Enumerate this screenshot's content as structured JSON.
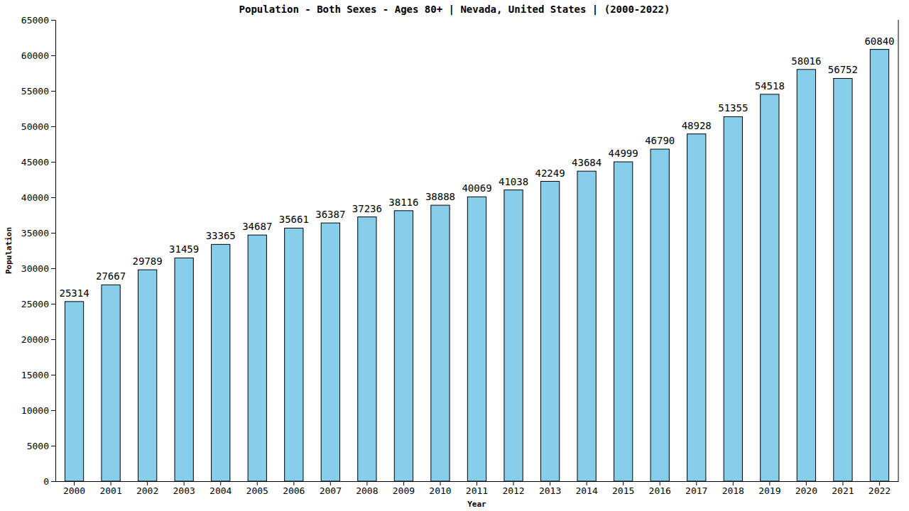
{
  "chart_data": {
    "type": "bar",
    "title": "Population - Both Sexes - Ages 80+ | Nevada, United States |  (2000-2022)",
    "x_label": "Year",
    "y_label": "Population",
    "categories": [
      "2000",
      "2001",
      "2002",
      "2003",
      "2004",
      "2005",
      "2006",
      "2007",
      "2008",
      "2009",
      "2010",
      "2011",
      "2012",
      "2013",
      "2014",
      "2015",
      "2016",
      "2017",
      "2018",
      "2019",
      "2020",
      "2021",
      "2022"
    ],
    "values": [
      25314,
      27667,
      29789,
      31459,
      33365,
      34687,
      35661,
      36387,
      37236,
      38116,
      38888,
      40069,
      41038,
      42249,
      43684,
      44999,
      46790,
      48928,
      51355,
      54518,
      58016,
      56752,
      60840
    ],
    "color": "#87ceeb",
    "ylim": [
      0,
      65000
    ],
    "yticks": [
      0,
      5000,
      10000,
      15000,
      20000,
      25000,
      30000,
      35000,
      40000,
      45000,
      50000,
      55000,
      60000,
      65000
    ],
    "grid": false,
    "data_labels": true
  }
}
